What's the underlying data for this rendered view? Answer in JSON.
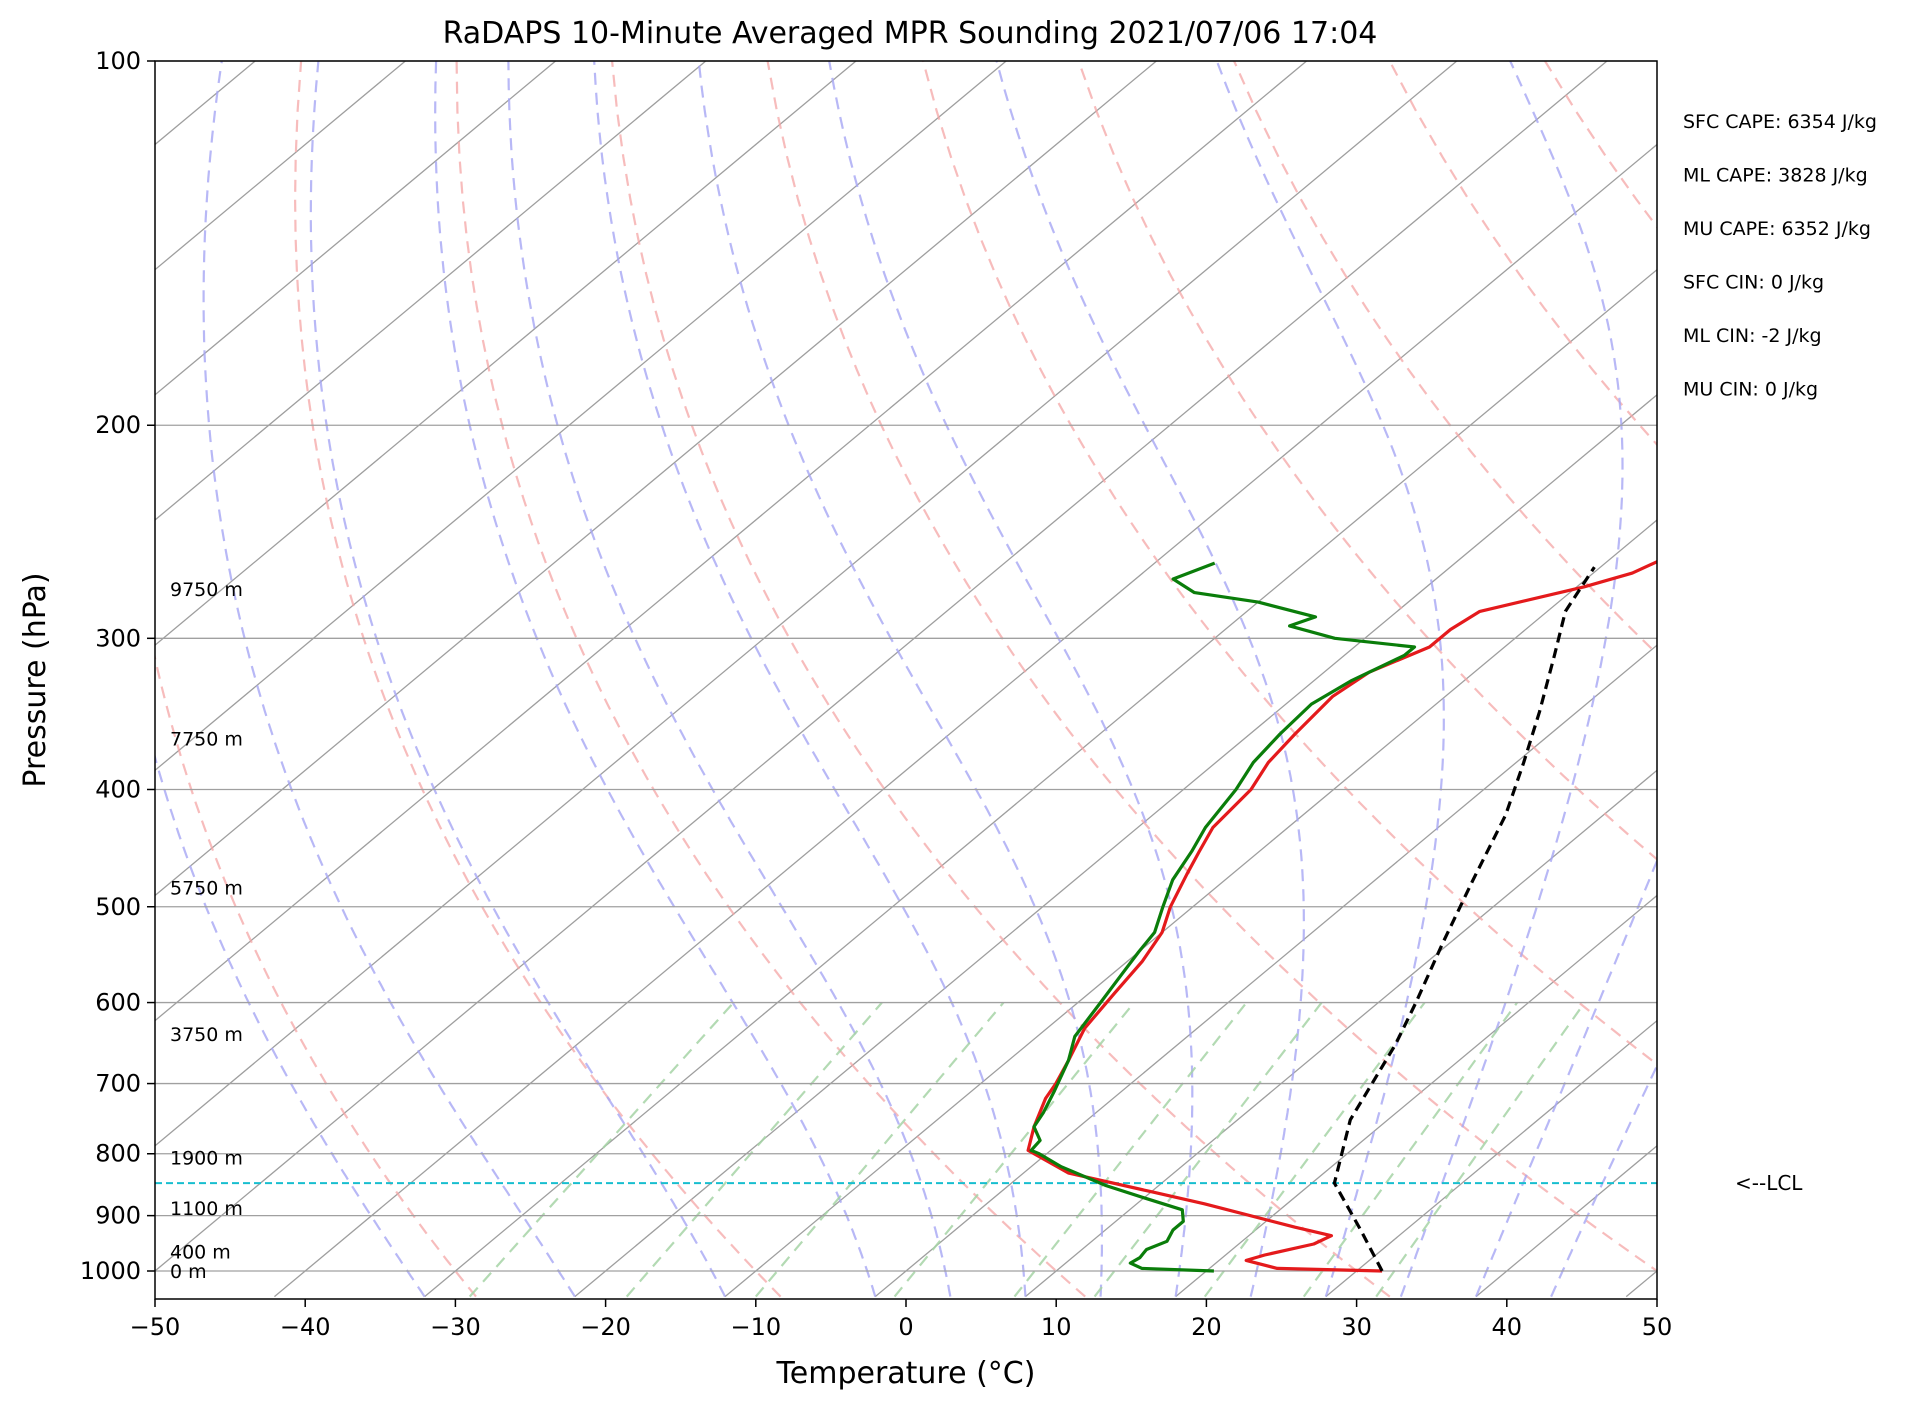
{
  "chart_data": {
    "type": "line",
    "subtype": "skew-t log-p sounding",
    "title": "RaDAPS 10-Minute Averaged MPR Sounding 2021/07/06 17:04",
    "xlabel": "Temperature (°C)",
    "ylabel": "Pressure (hPa)",
    "xlim": [
      -50,
      50
    ],
    "ylim": [
      1050,
      100
    ],
    "y_scale": "log",
    "grid": true,
    "x_ticks": [
      -50,
      -40,
      -30,
      -20,
      -10,
      0,
      10,
      20,
      30,
      40,
      50
    ],
    "x_tick_labels": [
      "−50",
      "−40",
      "−30",
      "−20",
      "−10",
      "0",
      "10",
      "20",
      "30",
      "40",
      "50"
    ],
    "y_ticks": [
      100,
      200,
      300,
      400,
      500,
      600,
      700,
      800,
      900,
      1000
    ],
    "y_tick_labels": [
      "100",
      "200",
      "300",
      "400",
      "500",
      "600",
      "700",
      "800",
      "900",
      "1000"
    ],
    "colors": {
      "temperature": "#e41a1c",
      "dewpoint": "#0a7d0a",
      "parcel": "#000000",
      "lcl": "#17becf",
      "isotherm": "#9e9e9e",
      "dry_adiabat": "#f4a6a6",
      "moist_adiabat": "#a6a6f4",
      "mixing_ratio": "#a6d4a6"
    },
    "series": [
      {
        "role": "temperature",
        "points": [
          [
            31.7,
            1000
          ],
          [
            24.5,
            995
          ],
          [
            21.8,
            980
          ],
          [
            22.6,
            970
          ],
          [
            25.0,
            950
          ],
          [
            25.5,
            935
          ],
          [
            22.4,
            920
          ],
          [
            14.5,
            880
          ],
          [
            10.0,
            860
          ],
          [
            3.0,
            830
          ],
          [
            -1.5,
            795
          ],
          [
            -3.0,
            760
          ],
          [
            -4.5,
            720
          ],
          [
            -5.0,
            700
          ],
          [
            -6.0,
            670
          ],
          [
            -7.5,
            630
          ],
          [
            -8.3,
            590
          ],
          [
            -9.0,
            555
          ],
          [
            -10.0,
            525
          ],
          [
            -11.5,
            500
          ],
          [
            -13.0,
            470
          ],
          [
            -14.0,
            450
          ],
          [
            -15.0,
            430
          ],
          [
            -15.5,
            400
          ],
          [
            -16.5,
            380
          ],
          [
            -17.0,
            360
          ],
          [
            -17.5,
            335
          ],
          [
            -17.0,
            320
          ],
          [
            -15.0,
            305
          ],
          [
            -15.0,
            295
          ],
          [
            -14.5,
            285
          ],
          [
            -9.5,
            272
          ],
          [
            -7.4,
            265
          ],
          [
            -6.5,
            258
          ]
        ]
      },
      {
        "role": "dewpoint",
        "points": [
          [
            20.5,
            1000
          ],
          [
            15.5,
            995
          ],
          [
            14.3,
            985
          ],
          [
            14.5,
            975
          ],
          [
            14.3,
            960
          ],
          [
            15.0,
            945
          ],
          [
            14.5,
            925
          ],
          [
            14.5,
            910
          ],
          [
            13.5,
            890
          ],
          [
            10.0,
            870
          ],
          [
            6.5,
            850
          ],
          [
            2.0,
            820
          ],
          [
            -0.5,
            800
          ],
          [
            -1.3,
            795
          ],
          [
            -1.5,
            780
          ],
          [
            -3.0,
            760
          ],
          [
            -3.5,
            740
          ],
          [
            -4.5,
            710
          ],
          [
            -6.0,
            670
          ],
          [
            -7.5,
            640
          ],
          [
            -8.5,
            600
          ],
          [
            -9.3,
            570
          ],
          [
            -10.0,
            545
          ],
          [
            -10.5,
            525
          ],
          [
            -12.0,
            500
          ],
          [
            -13.5,
            475
          ],
          [
            -14.5,
            450
          ],
          [
            -15.5,
            430
          ],
          [
            -16.5,
            400
          ],
          [
            -17.5,
            380
          ],
          [
            -18.0,
            360
          ],
          [
            -18.3,
            340
          ],
          [
            -17.5,
            325
          ],
          [
            -16.0,
            310
          ],
          [
            -16.0,
            305
          ],
          [
            -22.0,
            300
          ],
          [
            -26.0,
            293
          ],
          [
            -25.0,
            288
          ],
          [
            -30.0,
            280
          ],
          [
            -35.0,
            275
          ],
          [
            -37.5,
            268
          ],
          [
            -36.0,
            260
          ]
        ]
      },
      {
        "role": "parcel",
        "points": [
          [
            31.7,
            1000
          ],
          [
            27.0,
            925
          ],
          [
            21.5,
            846
          ],
          [
            17.5,
            750
          ],
          [
            14.5,
            650
          ],
          [
            12.5,
            600
          ],
          [
            9.5,
            535
          ],
          [
            6.5,
            475
          ],
          [
            3.5,
            420
          ],
          [
            0.5,
            380
          ],
          [
            -2.5,
            345
          ],
          [
            -6.0,
            310
          ],
          [
            -8.8,
            285
          ],
          [
            -10.4,
            262
          ]
        ]
      }
    ],
    "lcl": {
      "pressure": 846,
      "label": "<--LCL"
    },
    "height_labels": [
      {
        "text": "9750 m",
        "pressure": 273
      },
      {
        "text": "7750 m",
        "pressure": 363
      },
      {
        "text": "5750 m",
        "pressure": 482
      },
      {
        "text": "3750 m",
        "pressure": 637
      },
      {
        "text": "1900 m",
        "pressure": 806
      },
      {
        "text": "1100 m",
        "pressure": 887
      },
      {
        "text": "400 m",
        "pressure": 964
      },
      {
        "text": "0 m",
        "pressure": 1000
      }
    ],
    "annotations": [
      "SFC CAPE: 6354 J/kg",
      "ML CAPE: 3828 J/kg",
      "MU CAPE: 6352 J/kg",
      "SFC CIN: 0 J/kg",
      "ML CIN: -2 J/kg",
      "MU CIN: 0 J/kg"
    ]
  }
}
